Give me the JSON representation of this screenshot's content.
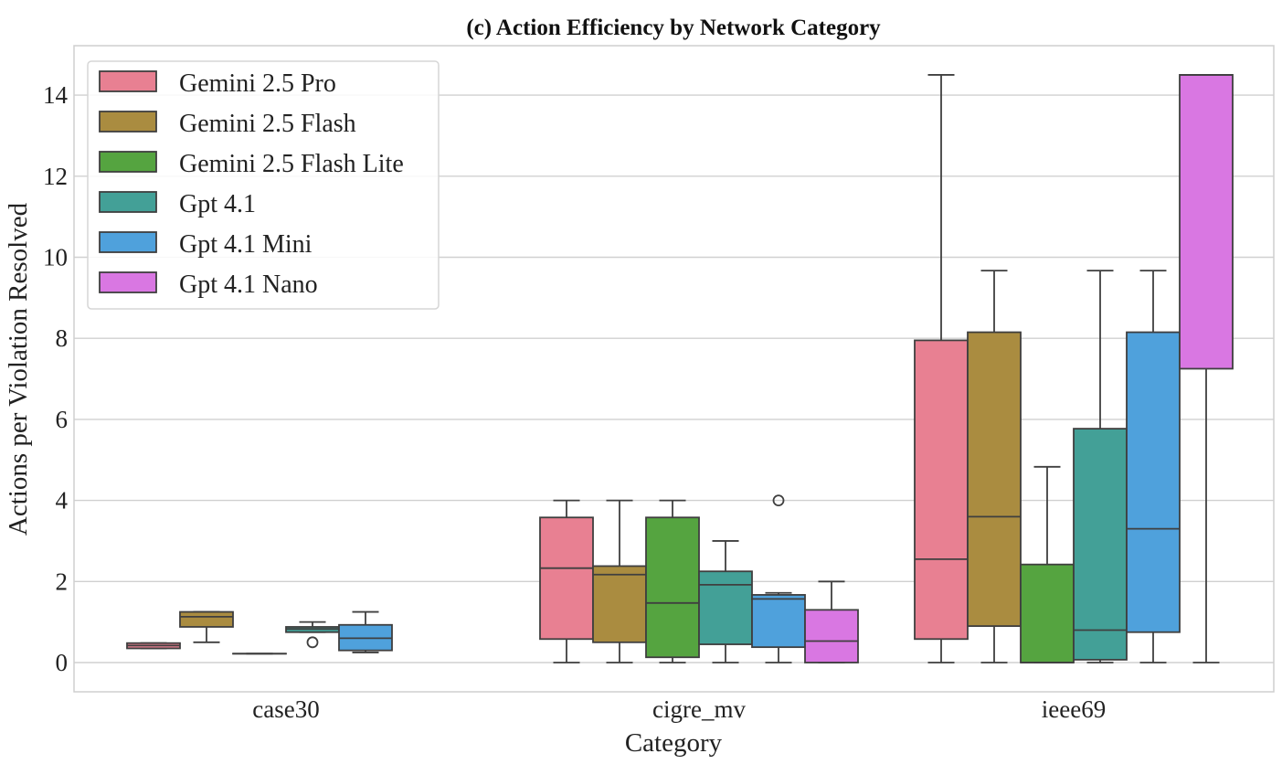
{
  "chart_data": {
    "type": "box",
    "title": "(c) Action Efficiency by Network Category",
    "xlabel": "Category",
    "ylabel": "Actions per Violation Resolved",
    "ylim": [
      -0.7,
      15.2
    ],
    "yticks": [
      0,
      2,
      4,
      6,
      8,
      10,
      12,
      14
    ],
    "grid": true,
    "legend_position": "top-left",
    "categories": [
      "case30",
      "cigre_mv",
      "ieee69"
    ],
    "series": [
      {
        "name": "Gemini 2.5 Pro",
        "color": "#e88092",
        "boxes": [
          {
            "category": "case30",
            "whisker_low": 0.35,
            "q1": 0.35,
            "median": 0.42,
            "q3": 0.48,
            "whisker_high": 0.48,
            "outliers": []
          },
          {
            "category": "cigre_mv",
            "whisker_low": 0.0,
            "q1": 0.58,
            "median": 2.33,
            "q3": 3.58,
            "whisker_high": 4.0,
            "outliers": []
          },
          {
            "category": "ieee69",
            "whisker_low": 0.0,
            "q1": 0.58,
            "median": 2.55,
            "q3": 7.95,
            "whisker_high": 14.5,
            "outliers": []
          }
        ]
      },
      {
        "name": "Gemini 2.5 Flash",
        "color": "#aa8c40",
        "boxes": [
          {
            "category": "case30",
            "whisker_low": 0.5,
            "q1": 0.88,
            "median": 1.13,
            "q3": 1.25,
            "whisker_high": 1.25,
            "outliers": []
          },
          {
            "category": "cigre_mv",
            "whisker_low": 0.0,
            "q1": 0.5,
            "median": 2.17,
            "q3": 2.38,
            "whisker_high": 4.0,
            "outliers": []
          },
          {
            "category": "ieee69",
            "whisker_low": 0.0,
            "q1": 0.9,
            "median": 3.6,
            "q3": 8.15,
            "whisker_high": 9.67,
            "outliers": []
          }
        ]
      },
      {
        "name": "Gemini 2.5 Flash Lite",
        "color": "#55a440",
        "boxes": [
          {
            "category": "case30",
            "whisker_low": 0.22,
            "q1": 0.22,
            "median": 0.22,
            "q3": 0.22,
            "whisker_high": 0.22,
            "outliers": []
          },
          {
            "category": "cigre_mv",
            "whisker_low": 0.0,
            "q1": 0.13,
            "median": 1.47,
            "q3": 3.58,
            "whisker_high": 4.0,
            "outliers": []
          },
          {
            "category": "ieee69",
            "whisker_low": 0.0,
            "q1": 0.0,
            "median": 0.0,
            "q3": 2.42,
            "whisker_high": 4.83,
            "outliers": []
          }
        ]
      },
      {
        "name": "Gpt 4.1",
        "color": "#43a097",
        "boxes": [
          {
            "category": "case30",
            "whisker_low": 0.75,
            "q1": 0.75,
            "median": 0.83,
            "q3": 0.88,
            "whisker_high": 1.0,
            "outliers": [
              0.5
            ]
          },
          {
            "category": "cigre_mv",
            "whisker_low": 0.0,
            "q1": 0.45,
            "median": 1.92,
            "q3": 2.25,
            "whisker_high": 3.0,
            "outliers": []
          },
          {
            "category": "ieee69",
            "whisker_low": 0.0,
            "q1": 0.07,
            "median": 0.8,
            "q3": 5.77,
            "whisker_high": 9.67,
            "outliers": []
          }
        ]
      },
      {
        "name": "Gpt 4.1 Mini",
        "color": "#4fa1dc",
        "boxes": [
          {
            "category": "case30",
            "whisker_low": 0.25,
            "q1": 0.3,
            "median": 0.6,
            "q3": 0.93,
            "whisker_high": 1.25,
            "outliers": []
          },
          {
            "category": "cigre_mv",
            "whisker_low": 0.0,
            "q1": 0.38,
            "median": 1.57,
            "q3": 1.67,
            "whisker_high": 1.72,
            "outliers": [
              4.0
            ]
          },
          {
            "category": "ieee69",
            "whisker_low": 0.0,
            "q1": 0.75,
            "median": 3.3,
            "q3": 8.15,
            "whisker_high": 9.67,
            "outliers": []
          }
        ]
      },
      {
        "name": "Gpt 4.1 Nano",
        "color": "#d977e2",
        "boxes": [
          {
            "category": "cigre_mv",
            "whisker_low": 0.0,
            "q1": 0.0,
            "median": 0.53,
            "q3": 1.3,
            "whisker_high": 2.0,
            "outliers": []
          },
          {
            "category": "ieee69",
            "whisker_low": 0.0,
            "q1": 7.25,
            "median": 14.5,
            "q3": 14.5,
            "whisker_high": 14.5,
            "outliers": []
          }
        ]
      }
    ]
  }
}
